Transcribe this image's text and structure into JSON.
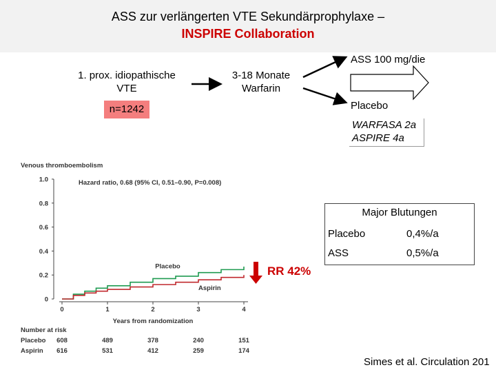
{
  "header": {
    "title": "ASS zur verlängerten VTE Sekundärprophylaxe –",
    "subtitle": "INSPIRE Collaboration"
  },
  "flow": {
    "indication": [
      "1. prox. idiopathische",
      "VTE"
    ],
    "n": "n=1242",
    "warfarin": [
      "3-18 Monate",
      "Warfarin"
    ],
    "arm_ass": "ASS 100 mg/die",
    "arm_placebo": "Placebo",
    "trials": [
      "WARFASA 2a",
      "ASPIRE 4a"
    ]
  },
  "bleeding": {
    "title": "Major Blutungen",
    "rows": [
      {
        "label": "Placebo",
        "value": "0,4%/a"
      },
      {
        "label": "ASS",
        "value": "0,5%/a"
      }
    ]
  },
  "rr": "RR 42%",
  "citation": "Simes et al. Circulation 201",
  "colors": {
    "accent_red": "#cc0000",
    "placebo": "#1e9a50",
    "aspirin": "#c0282d",
    "n_box": "#f47e7e"
  },
  "chart_data": {
    "type": "line",
    "title": "Venous thromboembolism",
    "annotation": "Hazard ratio, 0.68 (95% CI, 0.51–0.90, P=0.008)",
    "xlabel": "Years from randomization",
    "xlim": [
      0,
      4
    ],
    "ylim": [
      0,
      1.0
    ],
    "x_ticks": [
      "0",
      "1",
      "2",
      "3",
      "4"
    ],
    "y_ticks": [
      "0",
      "0.2",
      "0.4",
      "0.6",
      "0.8",
      "1.0"
    ],
    "series": [
      {
        "name": "Placebo",
        "x": [
          0,
          0.25,
          0.5,
          0.75,
          1,
          1.5,
          2,
          2.5,
          3,
          3.5,
          4
        ],
        "y": [
          0,
          0.04,
          0.065,
          0.09,
          0.11,
          0.14,
          0.17,
          0.19,
          0.22,
          0.245,
          0.27
        ]
      },
      {
        "name": "Aspirin",
        "x": [
          0,
          0.25,
          0.5,
          0.75,
          1,
          1.5,
          2,
          2.5,
          3,
          3.5,
          4
        ],
        "y": [
          0,
          0.03,
          0.05,
          0.065,
          0.08,
          0.1,
          0.12,
          0.14,
          0.16,
          0.18,
          0.2
        ]
      }
    ],
    "risk_table": {
      "title": "Number at risk",
      "rows": [
        {
          "name": "Placebo",
          "values": [
            "608",
            "489",
            "378",
            "240",
            "151"
          ]
        },
        {
          "name": "Aspirin",
          "values": [
            "616",
            "531",
            "412",
            "259",
            "174"
          ]
        }
      ]
    }
  }
}
